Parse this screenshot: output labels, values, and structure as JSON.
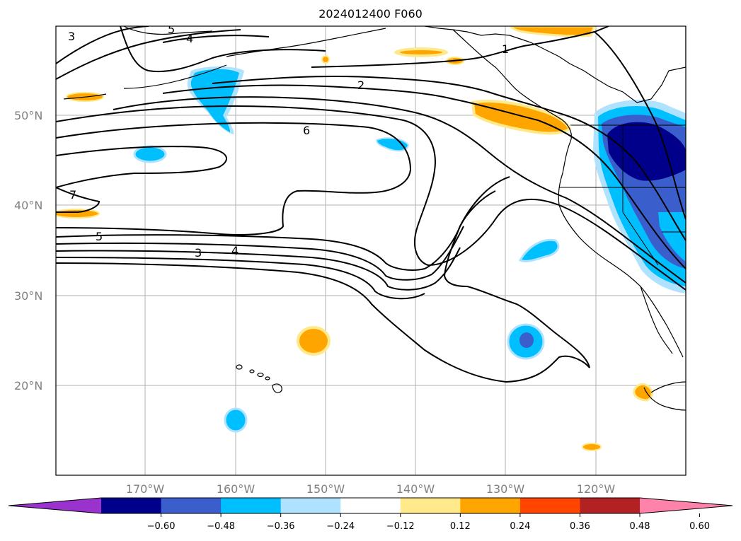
{
  "title": "2024012400 F060",
  "lat_labels": [
    "50°N",
    "40°N",
    "30°N",
    "20°N"
  ],
  "lon_labels": [
    "170°W",
    "160°W",
    "150°W",
    "140°W",
    "130°W",
    "120°W"
  ],
  "colorbar": {
    "ticks": [
      "−0.60",
      "−0.48",
      "−0.36",
      "−0.24",
      "−0.12",
      "0.12",
      "0.24",
      "0.36",
      "0.48",
      "0.60"
    ],
    "colors": [
      "#9a32cd",
      "#00008b",
      "#3a5fcd",
      "#00bfff",
      "#afe2ff",
      "#ffffff",
      "#ffe98a",
      "#ffa500",
      "#ff4500",
      "#b22222",
      "#ff82ab"
    ]
  },
  "contour_labels": [
    "3",
    "5",
    "4",
    "1",
    "2",
    "6",
    "7",
    "5",
    "3",
    "4"
  ],
  "colors": {
    "land_line": "#000000",
    "grid": "#b0b0b0",
    "contour": "#000000"
  }
}
